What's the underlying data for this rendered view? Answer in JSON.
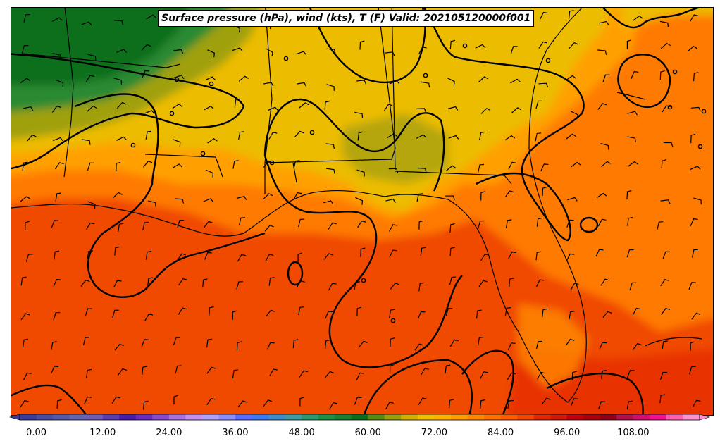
{
  "map": {
    "title": "Surface pressure (hPa), wind (kts), T (F) Valid: 202105120000f001"
  },
  "colorbar": {
    "colors": [
      "#3b3b9c",
      "#4a4aa0",
      "#5858a8",
      "#6464b0",
      "#6e5cb6",
      "#5a3cb0",
      "#4a1aa8",
      "#6a2cc0",
      "#8a4ad0",
      "#a870e0",
      "#c490f0",
      "#b0a0f8",
      "#8c8cff",
      "#5a6cff",
      "#3c78f0",
      "#3c8ccc",
      "#3c9ca0",
      "#2c9870",
      "#1c9048",
      "#148030",
      "#0c6e1c",
      "#5a8a10",
      "#98a010",
      "#d0b000",
      "#f0c000",
      "#ffb000",
      "#ff9c00",
      "#ff8800",
      "#ff7000",
      "#ff5c00",
      "#f04800",
      "#e02800",
      "#d01808",
      "#c00010",
      "#a8000c",
      "#90001a",
      "#b0104a",
      "#d0106c",
      "#f01090",
      "#ff60b0",
      "#ff90d0"
    ],
    "tick_labels": [
      "0.00",
      "12.00",
      "24.00",
      "36.00",
      "48.00",
      "60.00",
      "72.00",
      "84.00",
      "96.00",
      "108.00"
    ],
    "min": -3,
    "step": 3
  }
}
